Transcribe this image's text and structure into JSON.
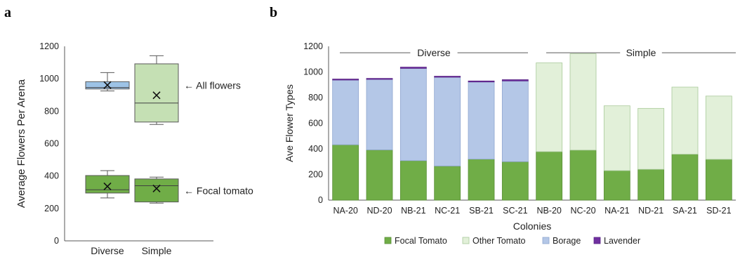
{
  "colors": {
    "diverse_box_top": "#9dc3e6",
    "diverse_box_bottom": "#70ad47",
    "simple_box_top": "#c5e0b4",
    "simple_box_bottom": "#70ad47",
    "focal_tomato": "#70ad47",
    "other_tomato": "#e2f0d9",
    "borage": "#b4c7e7",
    "lavender": "#7030a0",
    "axis": "#595959",
    "text": "#222222"
  },
  "chart_data": [
    {
      "panel": "a",
      "type": "box",
      "ylabel": "Average Flowers Per Arena",
      "ylim": [
        0,
        1200
      ],
      "yticks": [
        0,
        200,
        400,
        600,
        800,
        1000,
        1200
      ],
      "categories": [
        "Diverse",
        "Simple"
      ],
      "annotations": [
        "← All flowers",
        "← Focal tomato"
      ],
      "groups": [
        {
          "name": "All flowers",
          "boxes": [
            {
              "category": "Diverse",
              "min": 925,
              "q1": 937,
              "median": 946,
              "q3": 982,
              "max": 1038,
              "mean": 961
            },
            {
              "category": "Simple",
              "min": 718,
              "q1": 733,
              "median": 850,
              "q3": 1092,
              "max": 1142,
              "mean": 898
            }
          ]
        },
        {
          "name": "Focal tomato",
          "boxes": [
            {
              "category": "Diverse",
              "min": 265,
              "q1": 295,
              "median": 315,
              "q3": 403,
              "max": 433,
              "mean": 336
            },
            {
              "category": "Simple",
              "min": 233,
              "q1": 240,
              "median": 340,
              "q3": 382,
              "max": 393,
              "mean": 323
            }
          ]
        }
      ]
    },
    {
      "panel": "b",
      "type": "bar",
      "stacked": true,
      "xlabel": "Colonies",
      "ylabel": "Ave Flower Types",
      "ylim": [
        0,
        1200
      ],
      "yticks": [
        0,
        200,
        400,
        600,
        800,
        1000,
        1200
      ],
      "categories": [
        "NA-20",
        "ND-20",
        "NB-21",
        "NC-21",
        "SB-21",
        "SC-21",
        "NB-20",
        "NC-20",
        "NA-21",
        "ND-21",
        "SA-21",
        "SD-21"
      ],
      "group_labels": [
        {
          "label": "Diverse",
          "from": 0,
          "to": 5
        },
        {
          "label": "Simple",
          "from": 6,
          "to": 11
        }
      ],
      "series": [
        {
          "name": "Focal Tomato",
          "values": [
            432,
            392,
            308,
            266,
            320,
            300,
            378,
            390,
            230,
            240,
            358,
            318
          ]
        },
        {
          "name": "Other Tomato",
          "values": [
            0,
            0,
            0,
            0,
            0,
            0,
            693,
            752,
            506,
            476,
            524,
            494
          ]
        },
        {
          "name": "Borage",
          "values": [
            505,
            550,
            720,
            693,
            602,
            630,
            0,
            0,
            0,
            0,
            0,
            0
          ]
        },
        {
          "name": "Lavender",
          "values": [
            8,
            8,
            10,
            8,
            8,
            10,
            0,
            0,
            0,
            0,
            0,
            0
          ]
        }
      ],
      "legend": "bottom"
    }
  ]
}
